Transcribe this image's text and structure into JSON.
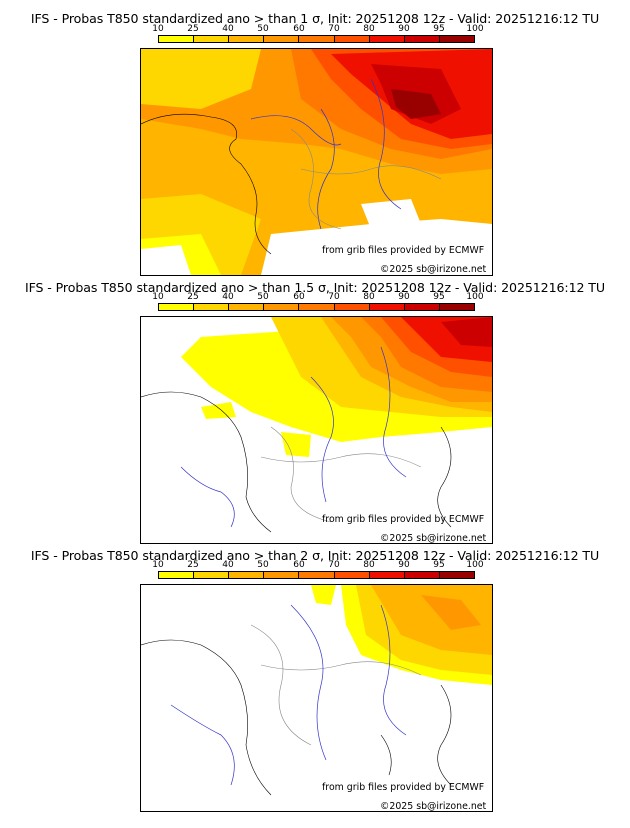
{
  "colorbar": {
    "labels": [
      "10",
      "25",
      "40",
      "50",
      "60",
      "70",
      "80",
      "90",
      "95",
      "100"
    ],
    "colors": [
      "#ffff00",
      "#ffd700",
      "#ffb400",
      "#ff9800",
      "#ff7800",
      "#ff5000",
      "#f01000",
      "#cc0000",
      "#990000",
      "#5a0000"
    ]
  },
  "panels": [
    {
      "title": "IFS - Probas T850  standardized ano > than 1 σ, Init: 20251208 12z - Valid: 20251216:12 TU",
      "source": "from grib files provided by ECMWF",
      "copyright": "©2025 sb@irizone.net"
    },
    {
      "title": "IFS - Probas T850  standardized ano > than 1.5 σ, Init: 20251208 12z - Valid: 20251216:12 TU",
      "source": "from grib files provided by ECMWF",
      "copyright": "©2025 sb@irizone.net"
    },
    {
      "title": "IFS - Probas T850  standardized ano > than 2 σ, Init: 20251208 12z - Valid: 20251216:12 TU",
      "source": "from grib files provided by ECMWF",
      "copyright": "©2025 sb@irizone.net"
    }
  ]
}
